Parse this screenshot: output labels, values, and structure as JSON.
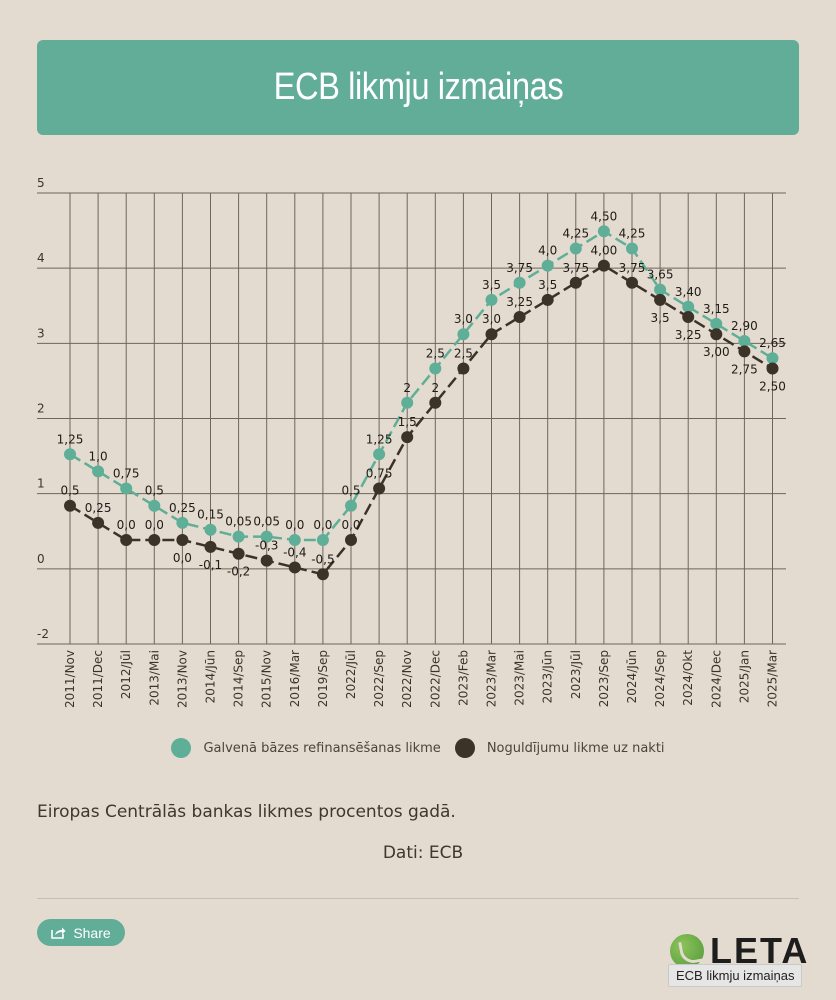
{
  "header": {
    "title": "ECB likmju izmaiņas"
  },
  "chart_data": {
    "type": "line",
    "title": "ECB likmju izmaiņas",
    "xlabel": "",
    "ylabel": "",
    "y_tick_labels": [
      "5",
      "4",
      "3",
      "2",
      "1",
      "0",
      "-2"
    ],
    "ylim": [
      -0.7,
      4.7
    ],
    "grid": true,
    "legend_position": "bottom",
    "categories": [
      "2011/Nov",
      "2011/Dec",
      "2012/Jūl",
      "2013/Mai",
      "2013/Nov",
      "2014/Jūn",
      "2014/Sep",
      "2015/Nov",
      "2016/Mar",
      "2019/Sep",
      "2022/Jūl",
      "2022/Sep",
      "2022/Nov",
      "2022/Dec",
      "2023/Feb",
      "2023/Mar",
      "2023/Mai",
      "2023/Jūn",
      "2023/Jūl",
      "2023/Sep",
      "2024/Jūn",
      "2024/Sep",
      "2024/Okt",
      "2024/Dec",
      "2025/Jan",
      "2025/Mar"
    ],
    "series": [
      {
        "name": "Galvenā bāzes refinansēšanas likme",
        "color": "#5fae97",
        "values": [
          1.25,
          1.0,
          0.75,
          0.5,
          0.25,
          0.15,
          0.05,
          0.05,
          0.0,
          0.0,
          0.5,
          1.25,
          2,
          2.5,
          3.0,
          3.5,
          3.75,
          4.0,
          4.25,
          4.5,
          4.25,
          3.65,
          3.4,
          3.15,
          2.9,
          2.65
        ],
        "labels": [
          "1,25",
          "1,0",
          "0,75",
          "0,5",
          "0,25",
          "0,15",
          "0,05",
          "0,05",
          "0,0",
          "0,0",
          "0,5",
          "1,25",
          "2",
          "2,5",
          "3,0",
          "3,5",
          "3,75",
          "4,0",
          "4,25",
          "4,50",
          "4,25",
          "3,65",
          "3,40",
          "3,15",
          "2,90",
          "2,65"
        ],
        "label_side": [
          "above",
          "above",
          "above",
          "above",
          "above",
          "above",
          "above",
          "above",
          "above",
          "above",
          "above",
          "above",
          "above",
          "above",
          "above",
          "above",
          "above",
          "above",
          "above",
          "above",
          "above",
          "above",
          "above",
          "above",
          "above",
          "above"
        ]
      },
      {
        "name": "Noguldījumu likme uz nakti",
        "color": "#3b3228",
        "values": [
          0.5,
          0.25,
          0.0,
          0.0,
          0.0,
          -0.1,
          -0.2,
          -0.3,
          -0.4,
          -0.5,
          0.0,
          0.75,
          1.5,
          2,
          2.5,
          3.0,
          3.25,
          3.5,
          3.75,
          4.0,
          3.75,
          3.5,
          3.25,
          3.0,
          2.75,
          2.5
        ],
        "labels": [
          "0,5",
          "0,25",
          "0,0",
          "0,0",
          "0,0",
          "-0,1",
          "-0,2",
          "-0,3",
          "-0,4",
          "-0,5",
          "0,0",
          "0,75",
          "1,5",
          "2",
          "2,5",
          "3,0",
          "3,25",
          "3,5",
          "3,75",
          "4,00",
          "3,75",
          "3,5",
          "3,25",
          "3,00",
          "2,75",
          "2,50"
        ],
        "label_side": [
          "above",
          "above",
          "above",
          "above",
          "below",
          "below",
          "below",
          "above",
          "above",
          "above",
          "above",
          "above",
          "above",
          "above",
          "above",
          "above",
          "above",
          "above",
          "above",
          "above",
          "above",
          "below",
          "below",
          "below",
          "below",
          "below"
        ]
      }
    ]
  },
  "legend": {
    "items": [
      {
        "label": "Galvenā bāzes refinansēšanas likme",
        "color": "#5fae97"
      },
      {
        "label": "Noguldījumu likme uz nakti",
        "color": "#3b3228"
      }
    ]
  },
  "caption": "Eiropas Centrālās bankas likmes procentos gadā.",
  "source": "Dati: ECB",
  "share": {
    "label": "Share",
    "icon": "share-icon"
  },
  "logo": {
    "text": "LETA"
  },
  "tooltip": {
    "text": "ECB likmju izmaiņas"
  }
}
